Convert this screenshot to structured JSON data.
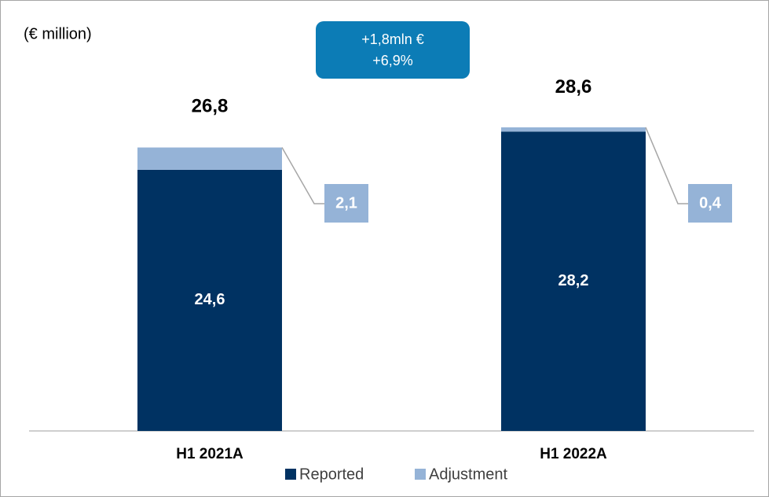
{
  "chart_data": {
    "type": "stacked_bar",
    "unit_label": "(€ million)",
    "annotation": [
      "+1,8mln €",
      "+6,9%"
    ],
    "categories": [
      "H1 2021A",
      "H1 2022A"
    ],
    "series": [
      {
        "name": "Reported",
        "color": "#003262",
        "values": [
          24.6,
          28.2
        ],
        "value_labels": [
          "24,6",
          "28,2"
        ]
      },
      {
        "name": "Adjustment",
        "color": "#95b3d7",
        "values": [
          2.1,
          0.4
        ],
        "value_labels": [
          "2,1",
          "0,4"
        ]
      }
    ],
    "totals": {
      "values": [
        26.8,
        28.6
      ],
      "value_labels": [
        "26,8",
        "28,6"
      ]
    },
    "ylim": [
      0,
      32
    ],
    "legend": "bottom"
  }
}
